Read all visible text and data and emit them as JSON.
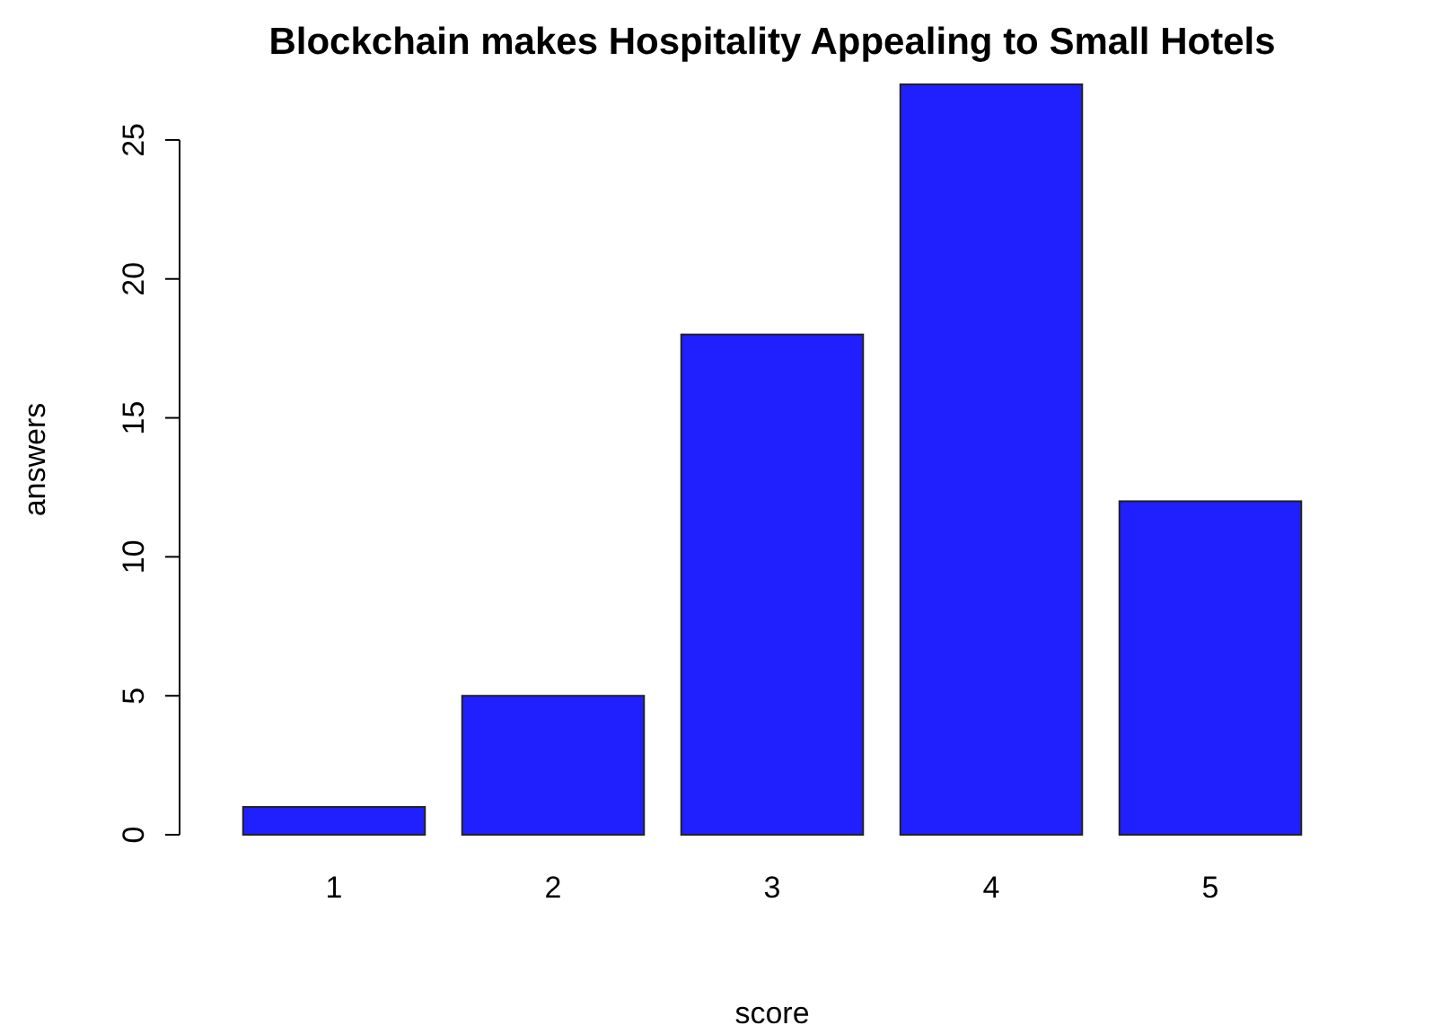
{
  "chart_data": {
    "type": "bar",
    "title": "Blockchain makes Hospitality Appealing to Small Hotels",
    "xlabel": "score",
    "ylabel": "answers",
    "categories": [
      "1",
      "2",
      "3",
      "4",
      "5"
    ],
    "values": [
      1,
      5,
      18,
      27,
      12
    ],
    "color": "#2020ff",
    "ylim": [
      0,
      27
    ],
    "yticks": [
      0,
      5,
      10,
      15,
      20,
      25
    ],
    "grid": false
  }
}
